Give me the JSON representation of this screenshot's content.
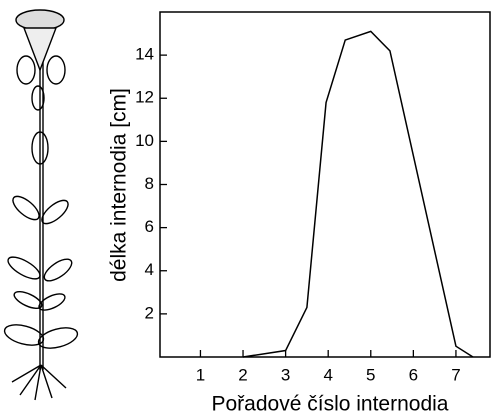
{
  "chart_data": {
    "type": "line",
    "x_label": "Pořadové číslo internodia",
    "y_label": "délka internodia [cm]",
    "series": [
      {
        "color": "#000000",
        "x": [
          2,
          3,
          3.5,
          3.95,
          4.4,
          5,
          5.45,
          7,
          7.4
        ],
        "values": [
          0,
          0.3,
          2.3,
          11.8,
          14.7,
          15.1,
          14.2,
          0.5,
          0
        ]
      }
    ],
    "xlim": [
      0.05,
      7.8
    ],
    "xticks": [
      1,
      2,
      3,
      4,
      5,
      6,
      7
    ],
    "ylim": [
      0,
      16
    ],
    "yticks": [
      2,
      4,
      6,
      8,
      10,
      12,
      14
    ]
  }
}
